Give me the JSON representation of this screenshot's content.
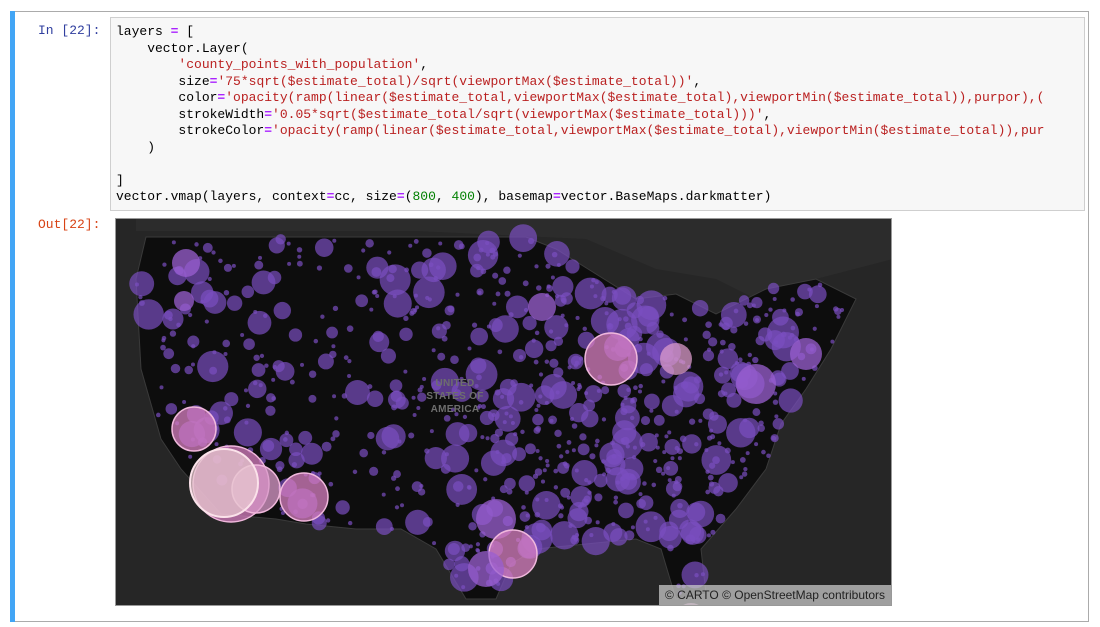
{
  "cell": {
    "in_prompt": "In [22]:",
    "out_prompt": "Out[22]:",
    "code_lines": [
      [
        [
          "plain",
          "layers "
        ],
        [
          "op",
          "="
        ],
        [
          "plain",
          " ["
        ]
      ],
      [
        [
          "plain",
          "    vector.Layer("
        ]
      ],
      [
        [
          "plain",
          "        "
        ],
        [
          "str",
          "'county_points_with_population'"
        ],
        [
          "plain",
          ","
        ]
      ],
      [
        [
          "plain",
          "        size"
        ],
        [
          "op",
          "="
        ],
        [
          "str",
          "'75*sqrt($estimate_total)/sqrt(viewportMax($estimate_total))'"
        ],
        [
          "plain",
          ","
        ]
      ],
      [
        [
          "plain",
          "        color"
        ],
        [
          "op",
          "="
        ],
        [
          "str",
          "'opacity(ramp(linear($estimate_total,viewportMax($estimate_total),viewportMin($estimate_total)),purpor),("
        ]
      ],
      [
        [
          "plain",
          "        strokeWidth"
        ],
        [
          "op",
          "="
        ],
        [
          "str",
          "'0.05*sqrt($estimate_total/sqrt(viewportMax($estimate_total)))'"
        ],
        [
          "plain",
          ","
        ]
      ],
      [
        [
          "plain",
          "        strokeColor"
        ],
        [
          "op",
          "="
        ],
        [
          "str",
          "'opacity(ramp(linear($estimate_total,viewportMax($estimate_total),viewportMin($estimate_total)),pur"
        ]
      ],
      [
        [
          "plain",
          "    )"
        ]
      ],
      [
        [
          "plain",
          ""
        ]
      ],
      [
        [
          "plain",
          "]"
        ]
      ],
      [
        [
          "plain",
          "vector.vmap(layers, context"
        ],
        [
          "op",
          "="
        ],
        [
          "plain",
          "cc, size"
        ],
        [
          "op",
          "="
        ],
        [
          "plain",
          "("
        ],
        [
          "num",
          "800"
        ],
        [
          "plain",
          ", "
        ],
        [
          "num",
          "400"
        ],
        [
          "plain",
          "), basemap"
        ],
        [
          "op",
          "="
        ],
        [
          "plain",
          "vector.BaseMaps.darkmatter)"
        ]
      ]
    ]
  },
  "map": {
    "country_label": "UNITED STATES OF AMERICA",
    "attribution": "© CARTO © OpenStreetMap contributors",
    "basemap_color": "#262626",
    "land_color": "#0d0d0d",
    "point_color": "#7b4fc0",
    "large_point_color": "#d77fc0"
  }
}
